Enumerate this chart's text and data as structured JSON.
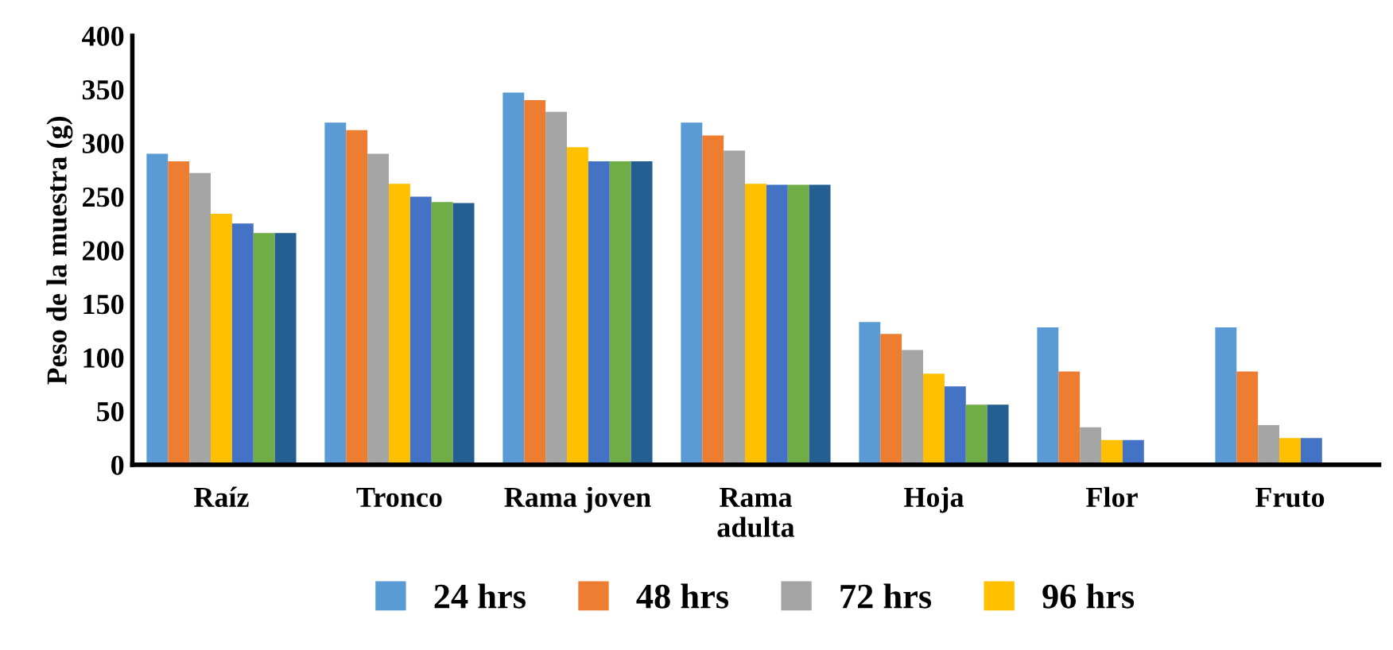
{
  "chart_data": {
    "type": "bar",
    "ylabel": "Peso de la muestra (g)",
    "categories": [
      "Raíz",
      "Tronco",
      "Rama joven",
      "Rama\nadulta",
      "Hoja",
      "Flor",
      "Fruto"
    ],
    "series": [
      {
        "name": "24 hrs",
        "color": "#5b9bd5",
        "values": [
          290,
          319,
          347,
          319,
          133,
          128,
          128
        ]
      },
      {
        "name": "48 hrs",
        "color": "#ed7d31",
        "values": [
          283,
          312,
          340,
          307,
          122,
          87,
          87
        ]
      },
      {
        "name": "72 hrs",
        "color": "#a5a5a5",
        "values": [
          272,
          290,
          329,
          293,
          107,
          35,
          37
        ]
      },
      {
        "name": "96 hrs",
        "color": "#ffc000",
        "values": [
          234,
          262,
          296,
          262,
          85,
          23,
          25
        ]
      },
      {
        "color": "#4472c4",
        "values": [
          225,
          250,
          283,
          261,
          73,
          23,
          25
        ]
      },
      {
        "color": "#70ad47",
        "values": [
          216,
          245,
          283,
          261,
          56,
          null,
          null
        ]
      },
      {
        "color": "#255e91",
        "values": [
          216,
          244,
          283,
          261,
          56,
          null,
          null
        ]
      }
    ],
    "ylim": [
      0,
      400
    ],
    "yticks": [
      0,
      50,
      100,
      150,
      200,
      250,
      300,
      350,
      400
    ],
    "grid": false,
    "legend": "bottom"
  }
}
